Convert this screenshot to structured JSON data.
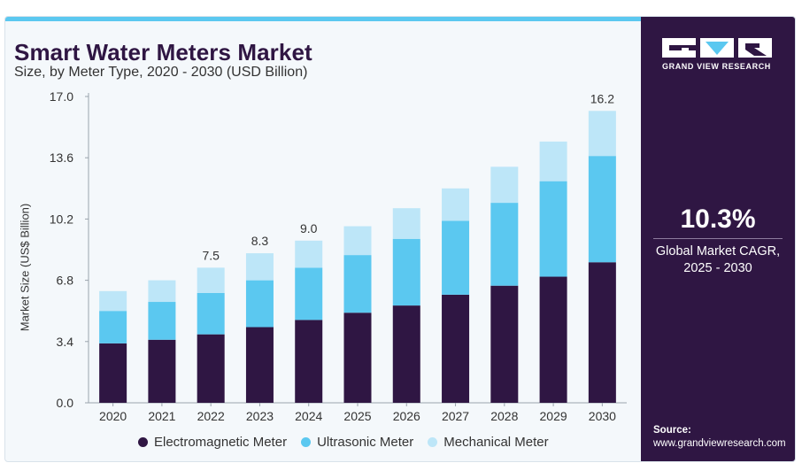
{
  "brand": {
    "name": "GRAND VIEW RESEARCH",
    "accent": "#5bc8f0",
    "sidebar_bg": "#2f1643"
  },
  "chart_data": {
    "type": "bar",
    "stacked": true,
    "title": "Smart Water Meters Market",
    "subtitle": "Size, by Meter Type, 2020 - 2030 (USD Billion)",
    "xlabel": "",
    "ylabel": "Market Size (US$ Billion)",
    "ylim": [
      0,
      17.0
    ],
    "yticks": [
      "0.0",
      "3.4",
      "6.8",
      "10.2",
      "13.6",
      "17.0"
    ],
    "grid": false,
    "legend_position": "bottom",
    "categories": [
      "2020",
      "2021",
      "2022",
      "2023",
      "2024",
      "2025",
      "2026",
      "2027",
      "2028",
      "2029",
      "2030"
    ],
    "series": [
      {
        "name": "Electromagnetic Meter",
        "color": "#2f1643",
        "values": [
          3.3,
          3.5,
          3.8,
          4.2,
          4.6,
          5.0,
          5.4,
          6.0,
          6.5,
          7.0,
          7.8
        ]
      },
      {
        "name": "Ultrasonic Meter",
        "color": "#5bc8f0",
        "values": [
          1.8,
          2.1,
          2.3,
          2.6,
          2.9,
          3.2,
          3.7,
          4.1,
          4.6,
          5.3,
          5.9
        ]
      },
      {
        "name": "Mechanical Meter",
        "color": "#bde6f8",
        "values": [
          1.1,
          1.2,
          1.4,
          1.5,
          1.5,
          1.6,
          1.7,
          1.8,
          2.0,
          2.2,
          2.5
        ]
      }
    ],
    "total_labels": [
      "",
      "",
      "7.5",
      "8.3",
      "9.0",
      "",
      "",
      "",
      "",
      "",
      "16.2"
    ]
  },
  "highlight": {
    "cagr_value": "10.3%",
    "cagr_label": "Global Market CAGR, 2025 - 2030"
  },
  "source": {
    "label": "Source:",
    "url": "www.grandviewresearch.com"
  }
}
